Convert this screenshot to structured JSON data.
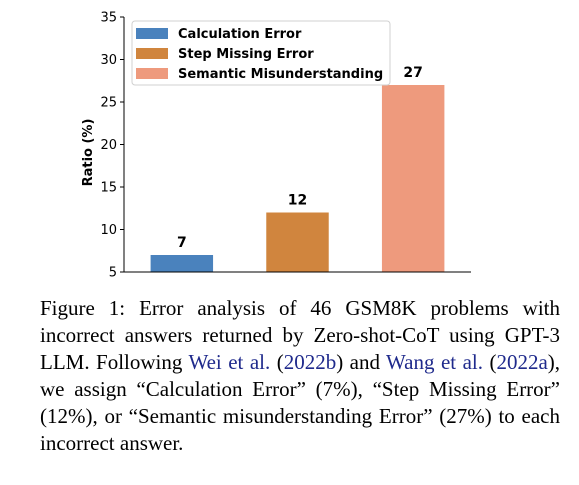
{
  "chart_data": {
    "type": "bar",
    "categories": [
      "Calculation Error",
      "Step Missing Error",
      "Semantic Misunderstanding"
    ],
    "values": [
      7,
      12,
      27
    ],
    "colors": [
      "#4a82bd",
      "#d0853e",
      "#ee9a7d"
    ],
    "title": "",
    "xlabel": "",
    "ylabel": "Ratio (%)",
    "ylim": [
      5,
      35
    ],
    "yticks": [
      5,
      10,
      15,
      20,
      25,
      30,
      35
    ],
    "data_labels": [
      "7",
      "12",
      "27"
    ],
    "legend": {
      "placement": "upper-left",
      "entries": [
        "Calculation Error",
        "Step Missing Error",
        "Semantic Misunderstanding"
      ]
    },
    "grid": false
  },
  "caption": {
    "p1": "Figure 1: Error analysis of 46 GSM8K problems with incorrect answers returned by Zero-shot-CoT using GPT-3 LLM. Following ",
    "cite1_name": "Wei et al.",
    "p2": " (",
    "cite1_year": "2022b",
    "p3": ") and ",
    "cite2_name": "Wang et al.",
    "p4": " (",
    "cite2_year": "2022a",
    "p5": "), we assign “Calculation Error” (7%), “Step Missing Error” (12%), or “Semantic misunderstanding Error” (27%) to each incorrect answer."
  }
}
